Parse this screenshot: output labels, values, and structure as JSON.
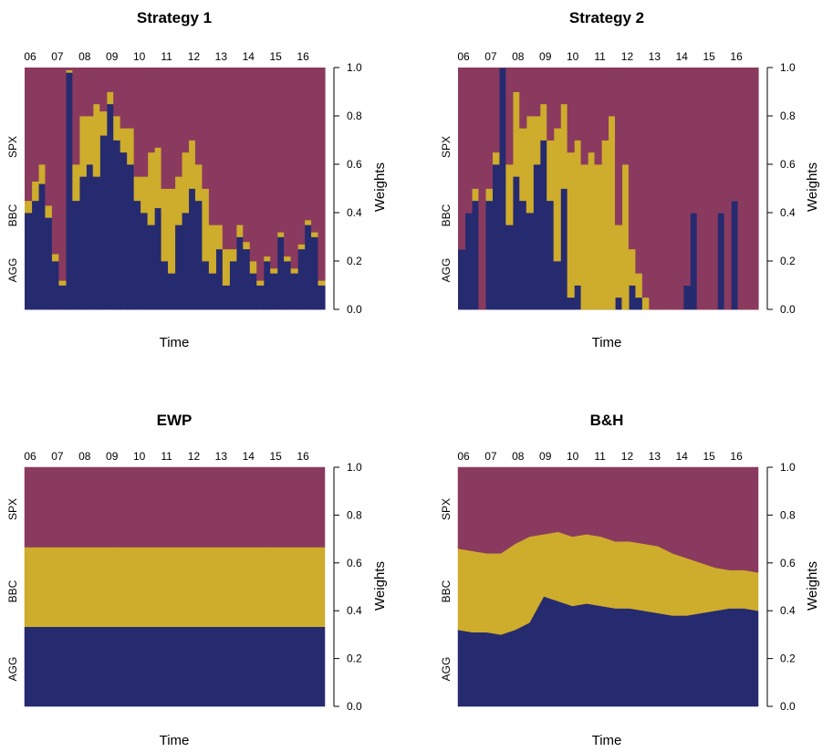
{
  "colors": {
    "AGG": "#262a6f",
    "BBC": "#ceac2c",
    "SPX": "#8b3a5f"
  },
  "chart_data": [
    {
      "type": "area",
      "title": "Strategy 1",
      "xlabel": "Time",
      "ylabel": "Weights",
      "series_labels": [
        "AGG",
        "BBC",
        "SPX"
      ],
      "year_ticks": [
        "06",
        "07",
        "08",
        "09",
        "10",
        "11",
        "12",
        "13",
        "14",
        "15",
        "16"
      ],
      "y_ticks": [
        "0.0",
        "0.2",
        "0.4",
        "0.6",
        "0.8",
        "1.0"
      ],
      "ylim": [
        0,
        1
      ],
      "x": [
        "06-Q1",
        "06-Q2",
        "06-Q3",
        "06-Q4",
        "07-Q1",
        "07-Q2",
        "07-Q3",
        "07-Q4",
        "08-Q1",
        "08-Q2",
        "08-Q3",
        "08-Q4",
        "09-Q1",
        "09-Q2",
        "09-Q3",
        "09-Q4",
        "10-Q1",
        "10-Q2",
        "10-Q3",
        "10-Q4",
        "11-Q1",
        "11-Q2",
        "11-Q3",
        "11-Q4",
        "12-Q1",
        "12-Q2",
        "12-Q3",
        "12-Q4",
        "13-Q1",
        "13-Q2",
        "13-Q3",
        "13-Q4",
        "14-Q1",
        "14-Q2",
        "14-Q3",
        "14-Q4",
        "15-Q1",
        "15-Q2",
        "15-Q3",
        "15-Q4",
        "16-Q1",
        "16-Q2",
        "16-Q3",
        "16-Q4"
      ],
      "AGG": [
        0.4,
        0.45,
        0.52,
        0.38,
        0.2,
        0.1,
        0.98,
        0.45,
        0.55,
        0.6,
        0.55,
        0.72,
        0.85,
        0.7,
        0.65,
        0.6,
        0.45,
        0.4,
        0.35,
        0.42,
        0.2,
        0.15,
        0.35,
        0.4,
        0.5,
        0.45,
        0.2,
        0.15,
        0.25,
        0.1,
        0.2,
        0.3,
        0.25,
        0.15,
        0.1,
        0.2,
        0.15,
        0.3,
        0.2,
        0.15,
        0.25,
        0.35,
        0.3,
        0.1
      ],
      "BBC": [
        0.05,
        0.08,
        0.08,
        0.05,
        0.03,
        0.02,
        0.01,
        0.15,
        0.25,
        0.2,
        0.3,
        0.1,
        0.05,
        0.1,
        0.1,
        0.15,
        0.1,
        0.15,
        0.3,
        0.25,
        0.3,
        0.35,
        0.2,
        0.25,
        0.2,
        0.15,
        0.3,
        0.2,
        0.1,
        0.15,
        0.05,
        0.05,
        0.03,
        0.05,
        0.02,
        0.02,
        0.02,
        0.02,
        0.02,
        0.02,
        0.02,
        0.02,
        0.02,
        0.02
      ],
      "SPX": [
        0.55,
        0.47,
        0.4,
        0.57,
        0.77,
        0.88,
        0.01,
        0.4,
        0.2,
        0.2,
        0.15,
        0.18,
        0.1,
        0.2,
        0.25,
        0.25,
        0.45,
        0.45,
        0.35,
        0.33,
        0.5,
        0.5,
        0.45,
        0.35,
        0.3,
        0.4,
        0.5,
        0.65,
        0.65,
        0.75,
        0.75,
        0.65,
        0.72,
        0.8,
        0.88,
        0.78,
        0.83,
        0.68,
        0.78,
        0.83,
        0.73,
        0.63,
        0.68,
        0.88
      ]
    },
    {
      "type": "area",
      "title": "Strategy 2",
      "xlabel": "Time",
      "ylabel": "Weights",
      "series_labels": [
        "AGG",
        "BBC",
        "SPX"
      ],
      "year_ticks": [
        "06",
        "07",
        "08",
        "09",
        "10",
        "11",
        "12",
        "13",
        "14",
        "15",
        "16"
      ],
      "y_ticks": [
        "0.0",
        "0.2",
        "0.4",
        "0.6",
        "0.8",
        "1.0"
      ],
      "ylim": [
        0,
        1
      ],
      "x": [
        "06-Q1",
        "06-Q2",
        "06-Q3",
        "06-Q4",
        "07-Q1",
        "07-Q2",
        "07-Q3",
        "07-Q4",
        "08-Q1",
        "08-Q2",
        "08-Q3",
        "08-Q4",
        "09-Q1",
        "09-Q2",
        "09-Q3",
        "09-Q4",
        "10-Q1",
        "10-Q2",
        "10-Q3",
        "10-Q4",
        "11-Q1",
        "11-Q2",
        "11-Q3",
        "11-Q4",
        "12-Q1",
        "12-Q2",
        "12-Q3",
        "12-Q4",
        "13-Q1",
        "13-Q2",
        "13-Q3",
        "13-Q4",
        "14-Q1",
        "14-Q2",
        "14-Q3",
        "14-Q4",
        "15-Q1",
        "15-Q2",
        "15-Q3",
        "15-Q4",
        "16-Q1",
        "16-Q2",
        "16-Q3",
        "16-Q4"
      ],
      "AGG": [
        0.25,
        0.4,
        0.45,
        0.0,
        0.45,
        0.6,
        1.0,
        0.35,
        0.55,
        0.45,
        0.4,
        0.6,
        0.7,
        0.45,
        0.2,
        0.5,
        0.05,
        0.1,
        0.0,
        0.0,
        0.0,
        0.0,
        0.0,
        0.05,
        0.0,
        0.1,
        0.05,
        0.0,
        0.0,
        0.0,
        0.0,
        0.0,
        0.0,
        0.1,
        0.4,
        0.0,
        0.0,
        0.0,
        0.4,
        0.0,
        0.45,
        0.0,
        0.0,
        0.0
      ],
      "BBC": [
        0.0,
        0.0,
        0.05,
        0.0,
        0.05,
        0.05,
        0.0,
        0.25,
        0.35,
        0.3,
        0.4,
        0.2,
        0.15,
        0.25,
        0.55,
        0.35,
        0.6,
        0.6,
        0.6,
        0.65,
        0.6,
        0.7,
        0.8,
        0.3,
        0.6,
        0.15,
        0.1,
        0.05,
        0.0,
        0.0,
        0.0,
        0.0,
        0.0,
        0.0,
        0.0,
        0.0,
        0.0,
        0.0,
        0.0,
        0.0,
        0.0,
        0.0,
        0.0,
        0.0
      ],
      "SPX": [
        0.75,
        0.6,
        0.5,
        1.0,
        0.5,
        0.35,
        0.0,
        0.4,
        0.1,
        0.25,
        0.2,
        0.2,
        0.15,
        0.3,
        0.25,
        0.15,
        0.35,
        0.3,
        0.4,
        0.35,
        0.4,
        0.3,
        0.2,
        0.65,
        0.4,
        0.75,
        0.85,
        0.95,
        1.0,
        1.0,
        1.0,
        1.0,
        1.0,
        0.9,
        0.6,
        1.0,
        1.0,
        1.0,
        0.6,
        1.0,
        0.55,
        1.0,
        1.0,
        1.0
      ]
    },
    {
      "type": "area",
      "title": "EWP",
      "xlabel": "Time",
      "ylabel": "Weights",
      "series_labels": [
        "AGG",
        "BBC",
        "SPX"
      ],
      "year_ticks": [
        "06",
        "07",
        "08",
        "09",
        "10",
        "11",
        "12",
        "13",
        "14",
        "15",
        "16"
      ],
      "y_ticks": [
        "0.0",
        "0.2",
        "0.4",
        "0.6",
        "0.8",
        "1.0"
      ],
      "ylim": [
        0,
        1
      ],
      "x": [
        "06",
        "07",
        "08",
        "09",
        "10",
        "11",
        "12",
        "13",
        "14",
        "15",
        "16"
      ],
      "AGG": [
        0.333,
        0.333,
        0.333,
        0.333,
        0.333,
        0.333,
        0.333,
        0.333,
        0.333,
        0.333,
        0.333
      ],
      "BBC": [
        0.333,
        0.333,
        0.333,
        0.333,
        0.333,
        0.333,
        0.333,
        0.333,
        0.333,
        0.333,
        0.333
      ],
      "SPX": [
        0.334,
        0.334,
        0.334,
        0.334,
        0.334,
        0.334,
        0.334,
        0.334,
        0.334,
        0.334,
        0.334
      ]
    },
    {
      "type": "area",
      "title": "B&H",
      "xlabel": "Time",
      "ylabel": "Weights",
      "series_labels": [
        "AGG",
        "BBC",
        "SPX"
      ],
      "year_ticks": [
        "06",
        "07",
        "08",
        "09",
        "10",
        "11",
        "12",
        "13",
        "14",
        "15",
        "16"
      ],
      "y_ticks": [
        "0.0",
        "0.2",
        "0.4",
        "0.6",
        "0.8",
        "1.0"
      ],
      "ylim": [
        0,
        1
      ],
      "x": [
        "06-H1",
        "06-H2",
        "07-H1",
        "07-H2",
        "08-H1",
        "08-H2",
        "09-H1",
        "09-H2",
        "10-H1",
        "10-H2",
        "11-H1",
        "11-H2",
        "12-H1",
        "12-H2",
        "13-H1",
        "13-H2",
        "14-H1",
        "14-H2",
        "15-H1",
        "15-H2",
        "16-H1",
        "16-H2"
      ],
      "AGG": [
        0.32,
        0.31,
        0.31,
        0.3,
        0.32,
        0.35,
        0.46,
        0.44,
        0.42,
        0.43,
        0.42,
        0.41,
        0.41,
        0.4,
        0.39,
        0.38,
        0.38,
        0.39,
        0.4,
        0.41,
        0.41,
        0.4
      ],
      "BBC": [
        0.34,
        0.34,
        0.33,
        0.34,
        0.36,
        0.36,
        0.26,
        0.29,
        0.29,
        0.29,
        0.29,
        0.28,
        0.28,
        0.28,
        0.28,
        0.26,
        0.24,
        0.21,
        0.18,
        0.16,
        0.16,
        0.16
      ],
      "SPX": [
        0.34,
        0.35,
        0.36,
        0.36,
        0.32,
        0.29,
        0.28,
        0.27,
        0.29,
        0.28,
        0.29,
        0.31,
        0.31,
        0.32,
        0.33,
        0.36,
        0.38,
        0.4,
        0.42,
        0.43,
        0.43,
        0.44
      ]
    }
  ]
}
